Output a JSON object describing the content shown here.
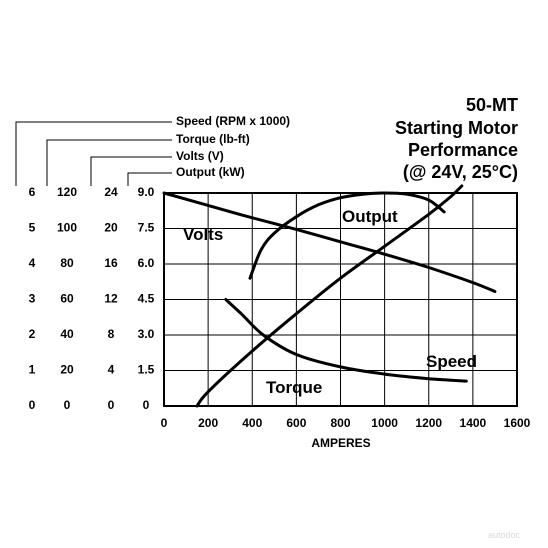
{
  "chart_data": {
    "type": "line",
    "title_lines": [
      "50-MT",
      "Starting Motor",
      "Performance",
      "(@ 24V, 25°C)"
    ],
    "xlabel": "AMPERES",
    "xlim": [
      0,
      1600
    ],
    "x_ticks": [
      "0",
      "200",
      "400",
      "600",
      "800",
      "1000",
      "1200",
      "1400",
      "1600"
    ],
    "grid": true,
    "y_axes": [
      {
        "label": "Speed (RPM x 1000)",
        "range": [
          0,
          6
        ],
        "ticks": [
          "0",
          "1",
          "2",
          "3",
          "4",
          "5",
          "6"
        ]
      },
      {
        "label": "Torque (lb-ft)",
        "range": [
          0,
          120
        ],
        "ticks": [
          "0",
          "20",
          "40",
          "60",
          "80",
          "100",
          "120"
        ]
      },
      {
        "label": "Volts (V)",
        "range": [
          0,
          24
        ],
        "ticks": [
          "0",
          "4",
          "8",
          "12",
          "16",
          "20",
          "24"
        ]
      },
      {
        "label": "Output (kW)",
        "range": [
          0,
          9
        ],
        "ticks": [
          "0",
          "1.5",
          "3.0",
          "4.5",
          "6.0",
          "7.5",
          "9.0"
        ]
      }
    ],
    "series": [
      {
        "name": "Volts",
        "axis": "Volts (V)",
        "x": [
          0,
          200,
          400,
          600,
          800,
          1000,
          1200,
          1400,
          1500
        ],
        "y": [
          24,
          22.6,
          21.2,
          19.9,
          18.5,
          17.1,
          15.6,
          13.9,
          12.9
        ]
      },
      {
        "name": "Output",
        "axis": "Output (kW)",
        "x": [
          390,
          440,
          500,
          600,
          700,
          800,
          900,
          1000,
          1100,
          1200,
          1270
        ],
        "y": [
          5.4,
          6.6,
          7.3,
          8.0,
          8.5,
          8.8,
          8.95,
          9.0,
          8.95,
          8.7,
          8.2
        ]
      },
      {
        "name": "Torque",
        "axis": "Torque (lb-ft)",
        "x": [
          150,
          200,
          400,
          600,
          800,
          1000,
          1200,
          1300,
          1350
        ],
        "y": [
          0,
          8,
          31,
          52,
          72,
          90,
          108,
          118,
          124
        ]
      },
      {
        "name": "Speed",
        "axis": "Speed (RPM x 1000)",
        "x": [
          280,
          350,
          450,
          600,
          800,
          1000,
          1200,
          1370
        ],
        "y": [
          3.0,
          2.6,
          2.0,
          1.45,
          1.1,
          0.9,
          0.77,
          0.7
        ]
      }
    ]
  },
  "watermark": "autodoc"
}
